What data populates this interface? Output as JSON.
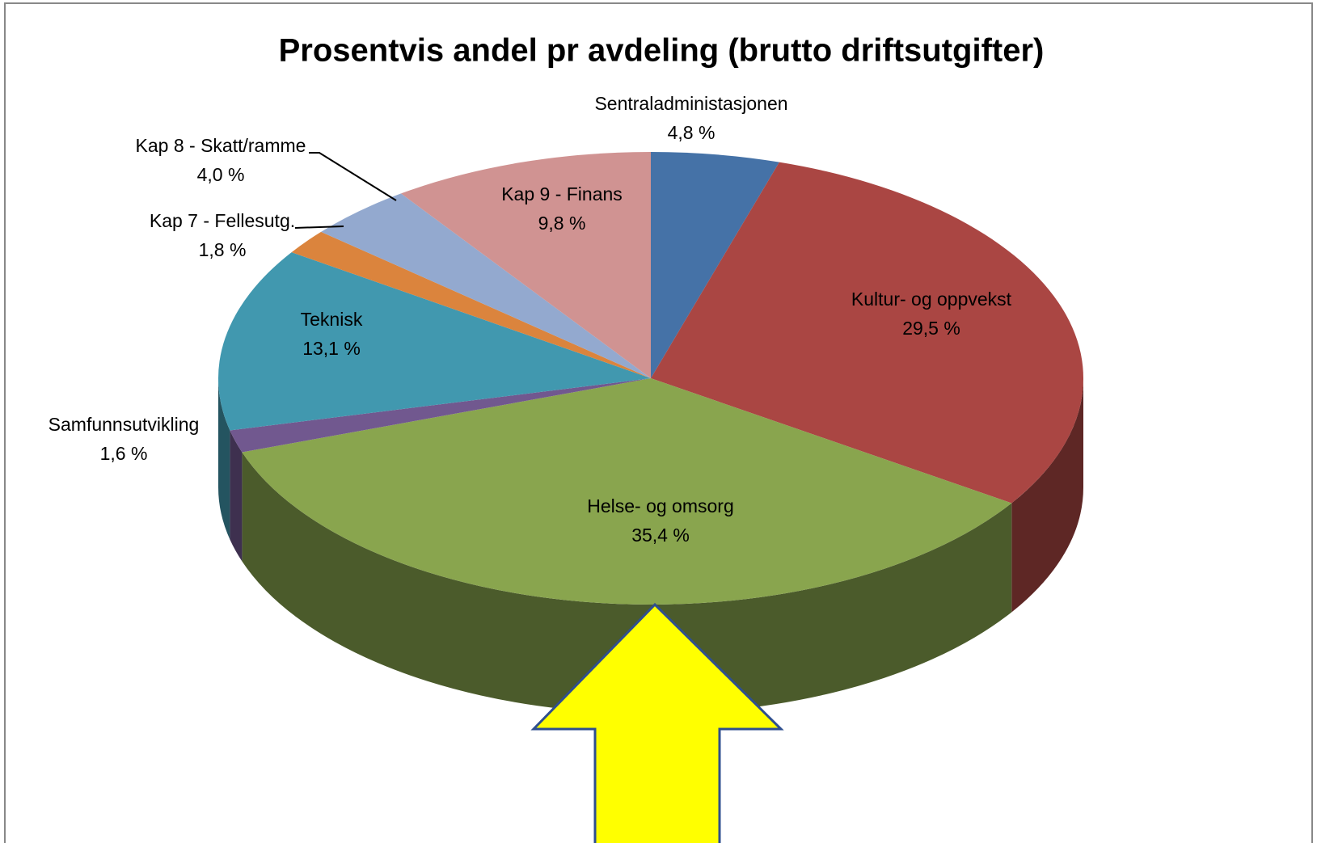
{
  "chart_data": {
    "type": "pie3d",
    "title": "Prosentvis andel pr avdeling (brutto driftsutgifter)",
    "categories": [
      "Sentraladministasjonen",
      "Kultur- og oppvekst",
      "Helse- og omsorg",
      "Samfunnsutvikling",
      "Teknisk",
      "Kap 7 - Fellesutg.",
      "Kap 8 - Skatt/ramme",
      "Kap 9 - Finans"
    ],
    "values": [
      4.8,
      29.5,
      35.4,
      1.6,
      13.1,
      1.8,
      4.0,
      9.8
    ],
    "value_labels": [
      "4,8 %",
      "29,5 %",
      "35,4 %",
      "1,6 %",
      "13,1 %",
      "1,8 %",
      "4,0 %",
      "9,8 %"
    ],
    "colors": [
      "#4572a7",
      "#aa4643",
      "#89a54e",
      "#71588f",
      "#4198af",
      "#db843d",
      "#93a9cf",
      "#d09392"
    ]
  }
}
